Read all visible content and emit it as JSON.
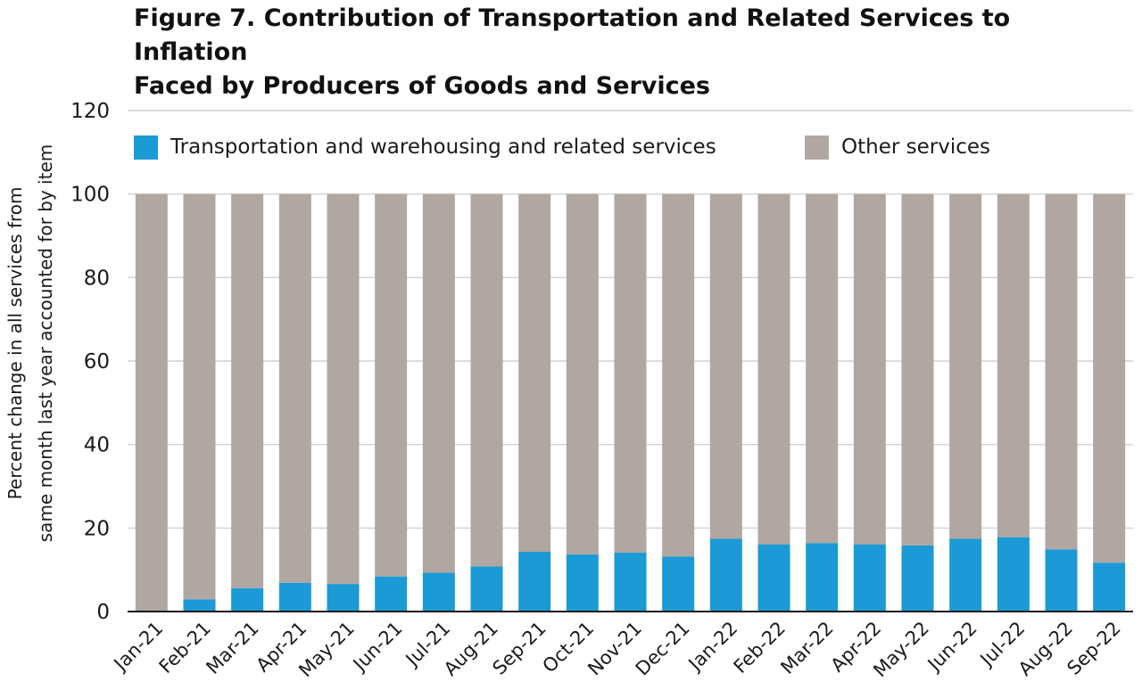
{
  "title": {
    "line1": "Figure 7. Contribution of Transportation and Related Services to Inflation",
    "line2": "Faced by Producers of Goods and Services"
  },
  "colors": {
    "transportation": "#1b9ad6",
    "other": "#b0a7a2",
    "grid": "#c8c8c8",
    "axis": "#1a1a1a"
  },
  "chart_data": {
    "type": "bar",
    "stacked": true,
    "ylabel_line1": "Percent change in all services from",
    "ylabel_line2": "same month last year accounted for by item",
    "xlabel": "",
    "ylim": [
      0,
      120
    ],
    "yticks": [
      0,
      20,
      40,
      60,
      80,
      100,
      120
    ],
    "grid": true,
    "legend_position": "top",
    "categories": [
      "Jan-21",
      "Feb-21",
      "Mar-21",
      "Apr-21",
      "May-21",
      "Jun-21",
      "Jul-21",
      "Aug-21",
      "Sep-21",
      "Oct-21",
      "Nov-21",
      "Dec-21",
      "Jan-22",
      "Feb-22",
      "Mar-22",
      "Apr-22",
      "May-22",
      "Jun-22",
      "Jul-22",
      "Aug-22",
      "Sep-22"
    ],
    "series": [
      {
        "name": "Transportation and warehousing and related services",
        "values": [
          0,
          2.9,
          5.6,
          6.9,
          6.6,
          8.4,
          9.3,
          10.8,
          14.3,
          13.7,
          14.1,
          13.2,
          17.4,
          16.1,
          16.4,
          16.1,
          15.8,
          17.4,
          17.8,
          14.9,
          11.7
        ]
      },
      {
        "name": "Other services",
        "values": [
          100,
          97.1,
          94.4,
          93.1,
          93.4,
          91.6,
          90.7,
          89.2,
          85.7,
          86.3,
          85.9,
          86.8,
          82.6,
          83.9,
          83.6,
          83.9,
          84.2,
          82.6,
          82.2,
          85.1,
          88.3
        ]
      }
    ]
  }
}
